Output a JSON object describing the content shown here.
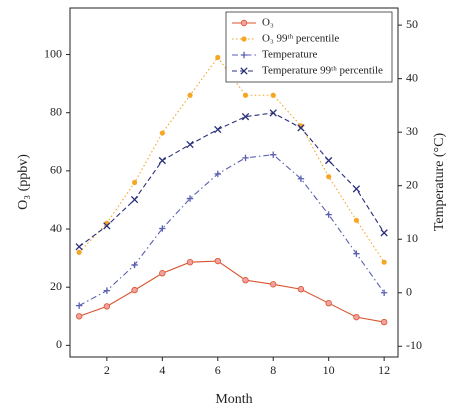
{
  "chart_data": {
    "type": "line",
    "xlabel": "Month",
    "ylabel": "O₃ (ppbv)",
    "y2label": "Temperature (°C)",
    "x": [
      1,
      2,
      3,
      4,
      5,
      6,
      7,
      8,
      9,
      10,
      11,
      12
    ],
    "xlim": [
      0.67,
      12.5
    ],
    "xticks": [
      2,
      4,
      6,
      8,
      10,
      12
    ],
    "ylim": [
      -4,
      116
    ],
    "yticks": [
      0,
      20,
      40,
      60,
      80,
      100
    ],
    "y2lim": [
      -12,
      53.2
    ],
    "y2ticks": [
      -10,
      0,
      10,
      20,
      30,
      40,
      50
    ],
    "legend": "upper right",
    "series": [
      {
        "name": "O₃",
        "color": "#d9532c",
        "linestyle": "solid",
        "marker": "circle",
        "values": [
          10,
          13.4,
          19,
          24.8,
          28.6,
          29,
          22.4,
          21,
          19.3,
          14.5,
          9.7,
          8
        ]
      },
      {
        "name": "O₃ 99ᵗʰ percentile",
        "color": "#f5a623",
        "linestyle": "dotted",
        "marker": "dot",
        "values": [
          32,
          42,
          56,
          73,
          86,
          99,
          86,
          86,
          75.5,
          58,
          43,
          28.6
        ]
      },
      {
        "name": "Temperature",
        "color": "#5a5fb0",
        "linestyle": "dashdot",
        "marker": "plus",
        "axis": "y2",
        "values": [
          -2.4,
          0.4,
          5.2,
          12,
          17.6,
          22.2,
          25.2,
          25.8,
          21.3,
          14.6,
          7.3,
          0
        ]
      },
      {
        "name": "Temperature 99ᵗʰ percentile",
        "color": "#2b2f7a",
        "linestyle": "dashed",
        "marker": "x",
        "axis": "y2",
        "values": [
          8.6,
          12.5,
          17.4,
          24.7,
          27.7,
          30.5,
          32.9,
          33.6,
          30.8,
          24.7,
          19.4,
          11.2
        ]
      }
    ]
  }
}
